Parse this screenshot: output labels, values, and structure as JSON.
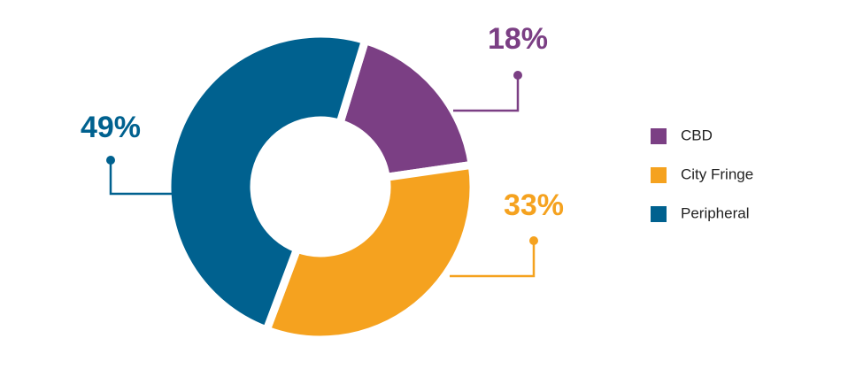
{
  "chart_data": {
    "type": "donut",
    "categories": [
      "CBD",
      "City Fringe",
      "Peripheral"
    ],
    "values": [
      18,
      33,
      49
    ],
    "value_labels": [
      "18%",
      "33%",
      "49%"
    ],
    "colors": [
      "#7b3f84",
      "#f5a21f",
      "#00618f"
    ],
    "legend": "right"
  }
}
